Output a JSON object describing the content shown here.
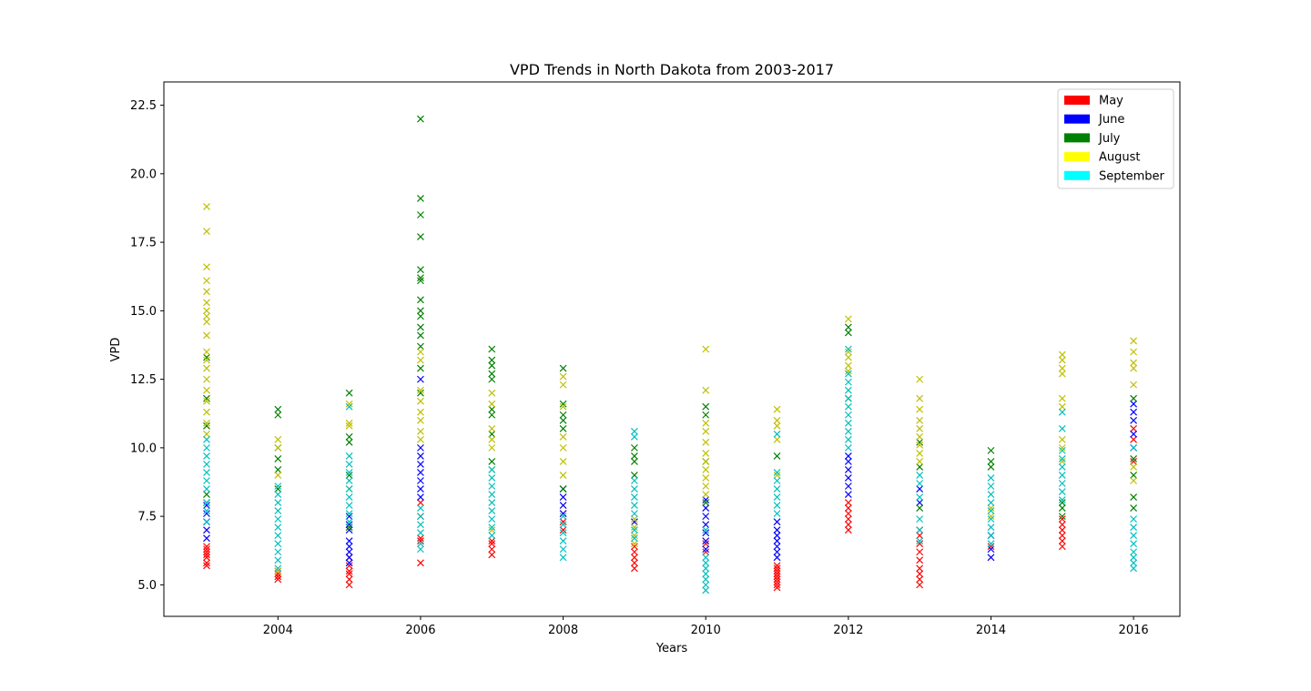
{
  "chart_data": {
    "type": "scatter",
    "title": "VPD Trends in North Dakota from 2003-2017",
    "xlabel": "Years",
    "ylabel": "VPD",
    "xlim": [
      2002.4,
      2016.65
    ],
    "ylim": [
      3.85,
      23.35
    ],
    "marker": "x",
    "grid": false,
    "legend_position": "top-right",
    "x_ticks": [
      2004,
      2006,
      2008,
      2010,
      2012,
      2014,
      2016
    ],
    "x_tick_labels": [
      "2004",
      "2006",
      "2008",
      "2010",
      "2012",
      "2014",
      "2016"
    ],
    "y_ticks": [
      5.0,
      7.5,
      10.0,
      12.5,
      15.0,
      17.5,
      20.0,
      22.5
    ],
    "y_tick_labels": [
      "5.0",
      "7.5",
      "10.0",
      "12.5",
      "15.0",
      "17.5",
      "20.0",
      "22.5"
    ],
    "series": [
      {
        "name": "May",
        "color": "#ff0000",
        "legend_color": "#ff0000",
        "points": [
          [
            2003,
            [
              5.7,
              5.8,
              6.0,
              6.1,
              6.2,
              6.3,
              6.4
            ]
          ],
          [
            2004,
            [
              5.2,
              5.3,
              5.4,
              5.5
            ]
          ],
          [
            2005,
            [
              5.0,
              5.2,
              5.4,
              5.5,
              5.7,
              6.0
            ]
          ],
          [
            2006,
            [
              5.8,
              6.6,
              6.7,
              7.5,
              8.0
            ]
          ],
          [
            2007,
            [
              6.1,
              6.3,
              6.5,
              6.6
            ]
          ],
          [
            2008,
            [
              7.0,
              7.3,
              7.6
            ]
          ],
          [
            2009,
            [
              5.6,
              5.8,
              6.0,
              6.2,
              6.4
            ]
          ],
          [
            2010,
            [
              6.2,
              6.5
            ]
          ],
          [
            2011,
            [
              4.9,
              5.0,
              5.1,
              5.2,
              5.3,
              5.4,
              5.5,
              5.6,
              5.7
            ]
          ],
          [
            2012,
            [
              7.0,
              7.2,
              7.4,
              7.6,
              7.8,
              8.0
            ]
          ],
          [
            2013,
            [
              5.0,
              5.2,
              5.4,
              5.6,
              5.9,
              6.2,
              6.5,
              6.8,
              7.0
            ]
          ],
          [
            2014,
            [
              6.4
            ]
          ],
          [
            2015,
            [
              6.4,
              6.6,
              6.8,
              7.0,
              7.2,
              7.4
            ]
          ],
          [
            2016,
            [
              9.5,
              10.3,
              10.7
            ]
          ]
        ]
      },
      {
        "name": "June",
        "color": "#0000ff",
        "legend_color": "#0000ff",
        "points": [
          [
            2003,
            [
              6.7,
              7.0,
              7.3,
              7.6,
              7.9
            ]
          ],
          [
            2005,
            [
              5.8,
              6.0,
              6.2,
              6.4,
              6.6,
              7.0,
              7.2,
              7.5
            ]
          ],
          [
            2006,
            [
              8.2,
              8.5,
              8.8,
              9.1,
              9.4,
              9.7,
              10.0,
              12.5
            ]
          ],
          [
            2008,
            [
              7.6,
              7.9,
              8.2,
              8.5
            ]
          ],
          [
            2009,
            [
              7.3
            ]
          ],
          [
            2010,
            [
              6.3,
              6.6,
              6.9,
              7.2,
              7.5,
              7.8,
              8.1
            ]
          ],
          [
            2011,
            [
              6.0,
              6.2,
              6.4,
              6.6,
              6.8,
              7.0,
              7.3
            ]
          ],
          [
            2012,
            [
              8.3,
              8.6,
              8.9,
              9.2,
              9.5,
              9.7
            ]
          ],
          [
            2013,
            [
              8.0,
              8.5
            ]
          ],
          [
            2014,
            [
              6.0,
              6.3,
              6.8
            ]
          ],
          [
            2016,
            [
              10.0,
              10.5,
              11.0,
              11.3,
              11.6
            ]
          ]
        ]
      },
      {
        "name": "July",
        "color": "#008000",
        "legend_color": "#008000",
        "points": [
          [
            2003,
            [
              8.0,
              8.3,
              10.8,
              11.8,
              13.3
            ]
          ],
          [
            2004,
            [
              8.5,
              9.2,
              9.6,
              10.0,
              11.2,
              11.4
            ]
          ],
          [
            2005,
            [
              7.1,
              9.0,
              10.2,
              10.4,
              12.0
            ]
          ],
          [
            2006,
            [
              12.0,
              12.9,
              13.7,
              14.1,
              14.4,
              14.8,
              15.0,
              15.4,
              16.1,
              16.2,
              16.5,
              17.7,
              18.5,
              19.1,
              22.0
            ]
          ],
          [
            2007,
            [
              9.5,
              10.5,
              11.2,
              11.4,
              12.5,
              12.7,
              13.0,
              13.2,
              13.6
            ]
          ],
          [
            2008,
            [
              8.5,
              10.7,
              11.0,
              11.2,
              11.6,
              12.9
            ]
          ],
          [
            2009,
            [
              9.0,
              9.5,
              9.7,
              10.0
            ]
          ],
          [
            2010,
            [
              8.0,
              9.5,
              11.2,
              11.5
            ]
          ],
          [
            2011,
            [
              9.7
            ]
          ],
          [
            2012,
            [
              11.8,
              14.2,
              14.4
            ]
          ],
          [
            2013,
            [
              7.8,
              9.3,
              10.2
            ]
          ],
          [
            2014,
            [
              9.3,
              9.5,
              9.9
            ]
          ],
          [
            2015,
            [
              7.5,
              7.8,
              8.0
            ]
          ],
          [
            2016,
            [
              7.8,
              8.2,
              9.0,
              9.6,
              11.8
            ]
          ]
        ]
      },
      {
        "name": "August",
        "color": "#bfbf00",
        "legend_color": "#ffff00",
        "points": [
          [
            2003,
            [
              10.5,
              10.9,
              11.3,
              11.7,
              12.1,
              12.5,
              12.9,
              13.2,
              13.5,
              14.1,
              14.6,
              14.8,
              15.0,
              15.3,
              15.7,
              16.1,
              16.6,
              17.9,
              18.8
            ]
          ],
          [
            2004,
            [
              5.5,
              9.0,
              10.0,
              10.3
            ]
          ],
          [
            2005,
            [
              8.5,
              10.8,
              10.9,
              11.6
            ]
          ],
          [
            2006,
            [
              10.3,
              10.6,
              11.0,
              11.3,
              11.7,
              12.1,
              13.2,
              13.5
            ]
          ],
          [
            2007,
            [
              7.0,
              9.2,
              10.0,
              10.3,
              10.7,
              11.6,
              12.0
            ]
          ],
          [
            2008,
            [
              9.0,
              9.5,
              10.0,
              10.4,
              11.5,
              12.3,
              12.6
            ]
          ],
          [
            2009,
            [
              6.5,
              6.8,
              7.1,
              7.4
            ]
          ],
          [
            2010,
            [
              8.3,
              8.6,
              8.9,
              9.2,
              9.5,
              9.8,
              10.2,
              10.6,
              10.9,
              12.1,
              13.6
            ]
          ],
          [
            2011,
            [
              9.0,
              10.3,
              10.8,
              11.0,
              11.4
            ]
          ],
          [
            2012,
            [
              12.8,
              13.0,
              13.3,
              13.5,
              14.7
            ]
          ],
          [
            2013,
            [
              9.5,
              9.8,
              10.1,
              10.4,
              10.7,
              11.0,
              11.4,
              11.8,
              12.5
            ]
          ],
          [
            2014,
            [
              7.5,
              7.8
            ]
          ],
          [
            2015,
            [
              9.5,
              10.0,
              10.3,
              11.5,
              11.8,
              12.7,
              12.9,
              13.2,
              13.4
            ]
          ],
          [
            2016,
            [
              8.8,
              9.3,
              12.3,
              12.9,
              13.1,
              13.5,
              13.9
            ]
          ]
        ]
      },
      {
        "name": "September",
        "color": "#00bfbf",
        "legend_color": "#00ffff",
        "points": [
          [
            2003,
            [
              7.3,
              7.7,
              8.0,
              8.5,
              8.8,
              9.1,
              9.4,
              9.7,
              10.0,
              10.3
            ]
          ],
          [
            2004,
            [
              5.6,
              5.9,
              6.2,
              6.5,
              6.8,
              7.1,
              7.4,
              7.7,
              8.0,
              8.3,
              8.6
            ]
          ],
          [
            2005,
            [
              7.3,
              7.6,
              7.9,
              8.2,
              8.5,
              8.8,
              9.1,
              9.4,
              9.7,
              11.5
            ]
          ],
          [
            2006,
            [
              6.3,
              6.5,
              6.9,
              7.2,
              7.5,
              7.8
            ]
          ],
          [
            2007,
            [
              6.8,
              7.1,
              7.4,
              7.7,
              8.0,
              8.3,
              8.6,
              8.9,
              9.2
            ]
          ],
          [
            2008,
            [
              6.0,
              6.3,
              6.6,
              6.9,
              7.2,
              7.5
            ]
          ],
          [
            2009,
            [
              6.7,
              7.0,
              7.6,
              7.9,
              8.2,
              8.5,
              8.8,
              10.4,
              10.6
            ]
          ],
          [
            2010,
            [
              4.8,
              5.0,
              5.2,
              5.4,
              5.6,
              5.8,
              6.0,
              7.0
            ]
          ],
          [
            2011,
            [
              7.6,
              7.9,
              8.2,
              8.5,
              8.8,
              9.1,
              10.5
            ]
          ],
          [
            2012,
            [
              10.0,
              10.3,
              10.6,
              10.9,
              11.2,
              11.5,
              11.8,
              12.1,
              12.4,
              12.7,
              13.6
            ]
          ],
          [
            2013,
            [
              6.6,
              7.0,
              7.4,
              8.2,
              8.7,
              9.0
            ]
          ],
          [
            2014,
            [
              6.5,
              6.8,
              7.1,
              7.4,
              7.7,
              8.0,
              8.3,
              8.6,
              8.9
            ]
          ],
          [
            2015,
            [
              8.1,
              8.4,
              8.7,
              9.0,
              9.3,
              9.6,
              9.9,
              10.7,
              11.3
            ]
          ],
          [
            2016,
            [
              5.6,
              5.8,
              6.0,
              6.2,
              6.5,
              6.8,
              7.1,
              7.4,
              10.0
            ]
          ]
        ]
      }
    ]
  }
}
